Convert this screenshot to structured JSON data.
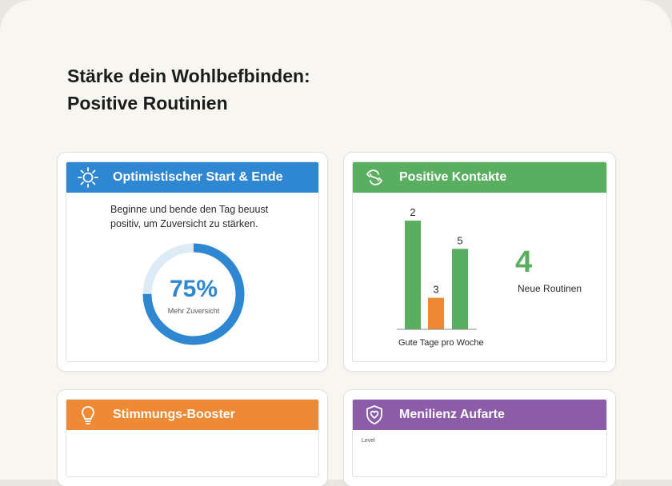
{
  "title_line1": "Stärke dein Wohlbefbinden:",
  "title_line2": "Positive Routinien",
  "colors": {
    "blue": "#2f86d1",
    "green": "#5aae5f",
    "orange": "#ee8a35",
    "purple": "#8b5ca8"
  },
  "card1": {
    "title": "Optimistischer Start & Ende",
    "icon": "sun-icon",
    "desc_line1": "Beginne und bende den Tag beuust",
    "desc_line2": "positiv, um Zuversicht zu stärken.",
    "progress_value": "75%",
    "progress_fraction": 0.75,
    "progress_label": "Mehr Zuversicht"
  },
  "card2": {
    "title": "Positive Kontakte",
    "icon": "connection-icon",
    "stat_value": "4",
    "stat_label": "Neue Routinen"
  },
  "card3": {
    "title": "Stimmungs-Booster",
    "icon": "lightbulb-icon"
  },
  "card4": {
    "title": "Menilienz Aufarte",
    "icon": "shield-heart-icon",
    "level_label": "Level"
  },
  "chart_data": {
    "type": "bar",
    "categories": [
      "",
      "",
      ""
    ],
    "values": [
      2,
      3,
      5
    ],
    "bar_colors": [
      "#5aae5f",
      "#ee8a35",
      "#5aae5f"
    ],
    "xlabel": "Gute Tage pro Woche",
    "ylabel": "",
    "grid": false
  }
}
